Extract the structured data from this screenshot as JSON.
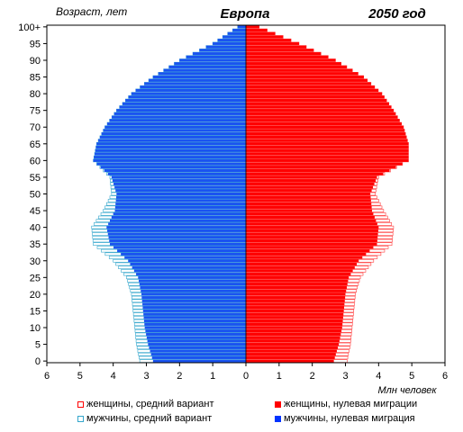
{
  "header": {
    "y_title": "Возраст, лет",
    "region": "Европа",
    "year_label": "2050 год"
  },
  "x_unit": "Млн человек",
  "legend": {
    "items": [
      {
        "label": "женщины, средний вариант",
        "color": "#ff0000",
        "style": "outline"
      },
      {
        "label": "женщины, нулевая миграции",
        "color": "#ff0000",
        "style": "filled"
      },
      {
        "label": "мужчины, средний вариант",
        "color": "#33a6cc",
        "style": "outline"
      },
      {
        "label": "мужчины, нулевая миграция",
        "color": "#0033ff",
        "style": "filled"
      }
    ]
  },
  "colors": {
    "female_zero": "#ff0000",
    "male_zero": "#1a53f0",
    "female_medium": "#ff3b3b",
    "male_medium": "#33a6cc"
  },
  "chart_data": {
    "type": "bar",
    "orientation": "horizontal",
    "title": "Европа",
    "subtitle": "2050 год",
    "xlabel": "Млн человек",
    "ylabel": "Возраст, лет",
    "xlim": [
      -6,
      6
    ],
    "ylim": [
      0,
      101
    ],
    "y_ticks": [
      "0",
      "5",
      "10",
      "15",
      "20",
      "25",
      "30",
      "35",
      "40",
      "45",
      "50",
      "55",
      "60",
      "65",
      "70",
      "75",
      "80",
      "85",
      "90",
      "95",
      "100+"
    ],
    "x_ticks": [
      "6",
      "5",
      "4",
      "3",
      "2",
      "1",
      "0",
      "1",
      "2",
      "3",
      "4",
      "5",
      "6"
    ],
    "age_anchors": [
      0,
      5,
      10,
      15,
      20,
      25,
      30,
      35,
      40,
      45,
      50,
      55,
      60,
      65,
      70,
      75,
      80,
      85,
      90,
      95,
      100
    ],
    "series": [
      {
        "name": "мужчины, нулевая миграция",
        "values": [
          2.8,
          2.95,
          3.05,
          3.1,
          3.15,
          3.25,
          3.55,
          4.1,
          4.2,
          3.95,
          3.9,
          4.05,
          4.6,
          4.5,
          4.25,
          3.9,
          3.45,
          2.8,
          2.0,
          1.0,
          0.25
        ]
      },
      {
        "name": "мужчины, средний вариант",
        "values": [
          3.2,
          3.3,
          3.35,
          3.4,
          3.45,
          3.6,
          4.0,
          4.6,
          4.65,
          4.3,
          4.05,
          4.1,
          4.6,
          4.5,
          4.25,
          3.9,
          3.45,
          2.8,
          2.0,
          1.0,
          0.25
        ]
      },
      {
        "name": "женщины, нулевая миграции",
        "values": [
          2.65,
          2.8,
          2.9,
          2.95,
          3.0,
          3.1,
          3.4,
          3.95,
          4.0,
          3.8,
          3.75,
          3.95,
          4.9,
          4.9,
          4.75,
          4.45,
          4.1,
          3.55,
          2.7,
          1.6,
          0.4
        ]
      },
      {
        "name": "женщины, средний вариант",
        "values": [
          3.05,
          3.15,
          3.2,
          3.25,
          3.3,
          3.45,
          3.85,
          4.4,
          4.45,
          4.15,
          3.9,
          4.0,
          4.9,
          4.9,
          4.75,
          4.45,
          4.1,
          3.55,
          2.7,
          1.6,
          0.4
        ]
      }
    ]
  }
}
